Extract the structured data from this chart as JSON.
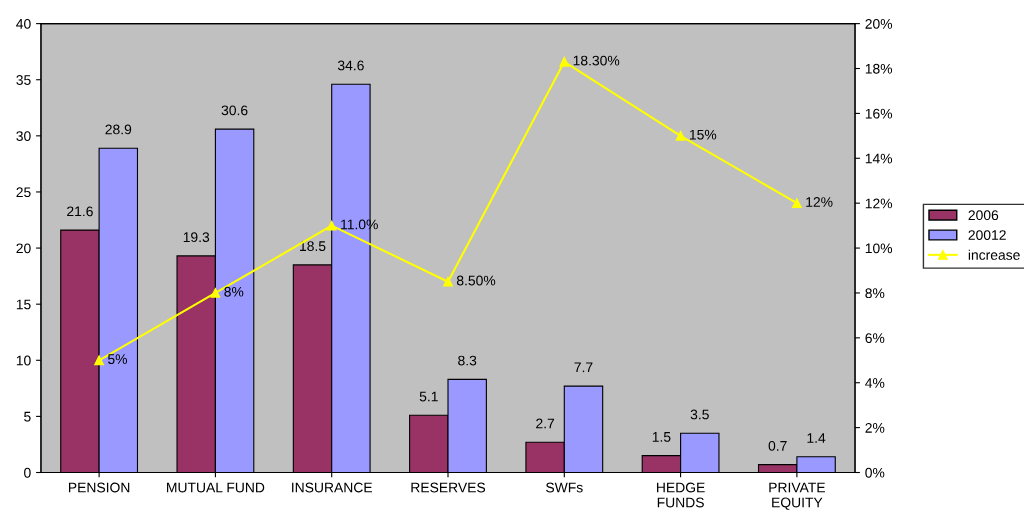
{
  "chart_data": {
    "type": "bar",
    "categories": [
      "PENSION",
      "MUTUAL FUND",
      "INSURANCE",
      "RESERVES",
      "SWFs",
      "HEDGE\nFUNDS",
      "PRIVATE\nEQUITY"
    ],
    "series": [
      {
        "name": "2006",
        "color": "#993366",
        "values": [
          21.6,
          19.3,
          18.5,
          5.1,
          2.7,
          1.5,
          0.7
        ]
      },
      {
        "name": "20012",
        "color": "#9999ff",
        "values": [
          28.9,
          30.6,
          34.6,
          8.3,
          7.7,
          3.5,
          1.4
        ]
      },
      {
        "name": "increase",
        "type": "line",
        "axis": "y2",
        "color": "#ffff00",
        "marker": "triangle",
        "values": [
          5,
          8,
          11,
          8.5,
          18.3,
          15,
          12
        ],
        "value_labels": [
          "5%",
          "8%",
          "11.0%",
          "8.50%",
          "18.30%",
          "15%",
          "12%"
        ]
      }
    ],
    "data_labels": true,
    "ylim": [
      0,
      40
    ],
    "yticks": [
      0,
      5,
      10,
      15,
      20,
      25,
      30,
      35,
      40
    ],
    "y2lim": [
      0,
      20
    ],
    "y2ticks": [
      {
        "value": 0,
        "label": "0%"
      },
      {
        "value": 2,
        "label": "2%"
      },
      {
        "value": 4,
        "label": "4%"
      },
      {
        "value": 6,
        "label": "6%"
      },
      {
        "value": 8,
        "label": "8%"
      },
      {
        "value": 10,
        "label": "10%"
      },
      {
        "value": 12,
        "label": "12%"
      },
      {
        "value": 14,
        "label": "14%"
      },
      {
        "value": 16,
        "label": "16%"
      },
      {
        "value": 18,
        "label": "18%"
      },
      {
        "value": 20,
        "label": "20%"
      }
    ],
    "grid": false,
    "legend": "right"
  }
}
